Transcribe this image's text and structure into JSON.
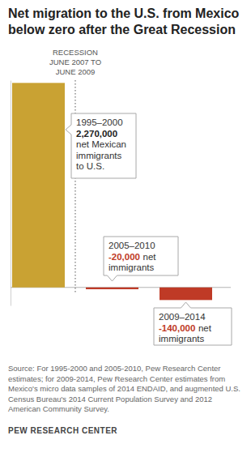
{
  "chart_data": {
    "type": "bar",
    "title": "Net migration to the U.S. from Mexico below zero after the Great Recession",
    "categories": [
      "1995–2000",
      "2005–2010",
      "2009–2014"
    ],
    "values": [
      2270000,
      -20000,
      -140000
    ],
    "value_labels": [
      "2,270,000",
      "-20,000",
      "-140,000"
    ],
    "data_labels": true,
    "colors": [
      "#c9a233",
      "#bf3a26",
      "#bf3a26"
    ],
    "ylim": [
      -200000,
      2300000
    ],
    "yticks": [
      0
    ],
    "grid": true,
    "tick_labels": false,
    "value_notes": [
      {
        "lines": [
          "net Mexican",
          "immigrants",
          "to U.S."
        ]
      },
      {
        "after_value": "net",
        "lines": [
          "immigrants"
        ]
      },
      {
        "after_value": "net",
        "lines": [
          "immigrants"
        ]
      }
    ],
    "annotations": [
      {
        "lines": [
          "RECESSION",
          "JUNE 2007 TO",
          "JUNE 2009"
        ]
      }
    ],
    "source": "Source: For 1995-2000 and 2005-2010, Pew Research Center estimates; for 2009-2014, Pew Research Center estimates from Mexico's micro data samples of 2014 ENDAID, and augmented U.S. Census Bureau's 2014 Current Population Survey and 2012 American Community Survey.",
    "credit": "PEW RESEARCH CENTER"
  }
}
